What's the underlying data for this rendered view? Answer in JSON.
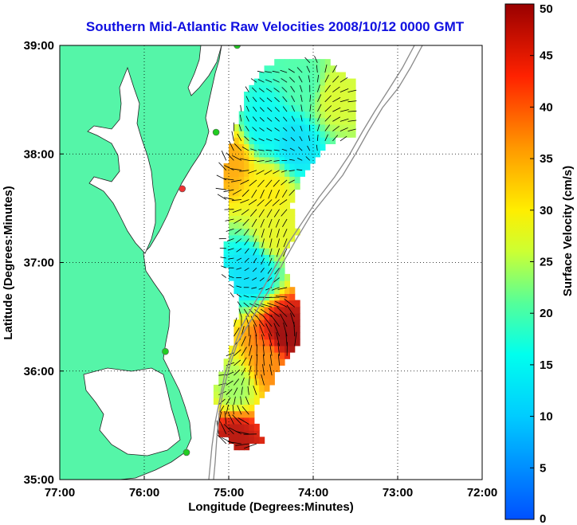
{
  "chart_data": {
    "type": "heatmap",
    "title": "Southern Mid-Atlantic Raw Velocities 2008/10/12 0000 GMT",
    "xlabel": "Longitude (Degrees:Minutes)",
    "ylabel": "Latitude (Degrees:Minutes)",
    "xlim": [
      -77,
      -72
    ],
    "ylim": [
      35,
      39
    ],
    "x_ticks": [
      {
        "value": -77,
        "label": "77:00"
      },
      {
        "value": -76,
        "label": "76:00"
      },
      {
        "value": -75,
        "label": "75:00"
      },
      {
        "value": -74,
        "label": "74:00"
      },
      {
        "value": -73,
        "label": "73:00"
      },
      {
        "value": -72,
        "label": "72:00"
      }
    ],
    "y_ticks": [
      {
        "value": 35,
        "label": "35:00"
      },
      {
        "value": 36,
        "label": "36:00"
      },
      {
        "value": 37,
        "label": "37:00"
      },
      {
        "value": 38,
        "label": "38:00"
      },
      {
        "value": 39,
        "label": "39:00"
      }
    ],
    "grid": true,
    "colorbar": {
      "label": "Surface Velocity (cm/s)",
      "min": 0,
      "max": 50,
      "ticks": [
        0,
        5,
        10,
        15,
        20,
        25,
        30,
        35,
        40,
        45,
        50
      ]
    },
    "land_color": "#55f5a8",
    "vector_color": "#000000",
    "stations": [
      {
        "lon": -74.9,
        "lat": 39.0,
        "color": "#22cc22"
      },
      {
        "lon": -75.15,
        "lat": 38.2,
        "color": "#22cc22"
      },
      {
        "lon": -75.55,
        "lat": 37.68,
        "color": "#ee3333"
      },
      {
        "lon": -75.75,
        "lat": 36.18,
        "color": "#22cc22"
      },
      {
        "lon": -75.5,
        "lat": 35.25,
        "color": "#22cc22"
      }
    ],
    "velocity_regions": [
      {
        "lon": -74.1,
        "lat": 38.6,
        "speed": 20
      },
      {
        "lon": -73.8,
        "lat": 38.5,
        "speed": 27
      },
      {
        "lon": -74.6,
        "lat": 38.2,
        "speed": 15
      },
      {
        "lon": -74.25,
        "lat": 38.05,
        "speed": 12
      },
      {
        "lon": -75.0,
        "lat": 37.9,
        "speed": 35
      },
      {
        "lon": -74.55,
        "lat": 37.65,
        "speed": 30
      },
      {
        "lon": -74.5,
        "lat": 37.25,
        "speed": 28
      },
      {
        "lon": -74.75,
        "lat": 36.9,
        "speed": 12
      },
      {
        "lon": -74.35,
        "lat": 36.3,
        "speed": 50
      },
      {
        "lon": -74.55,
        "lat": 36.05,
        "speed": 37
      },
      {
        "lon": -74.95,
        "lat": 35.8,
        "speed": 24
      },
      {
        "lon": -74.95,
        "lat": 35.35,
        "speed": 48
      }
    ]
  }
}
